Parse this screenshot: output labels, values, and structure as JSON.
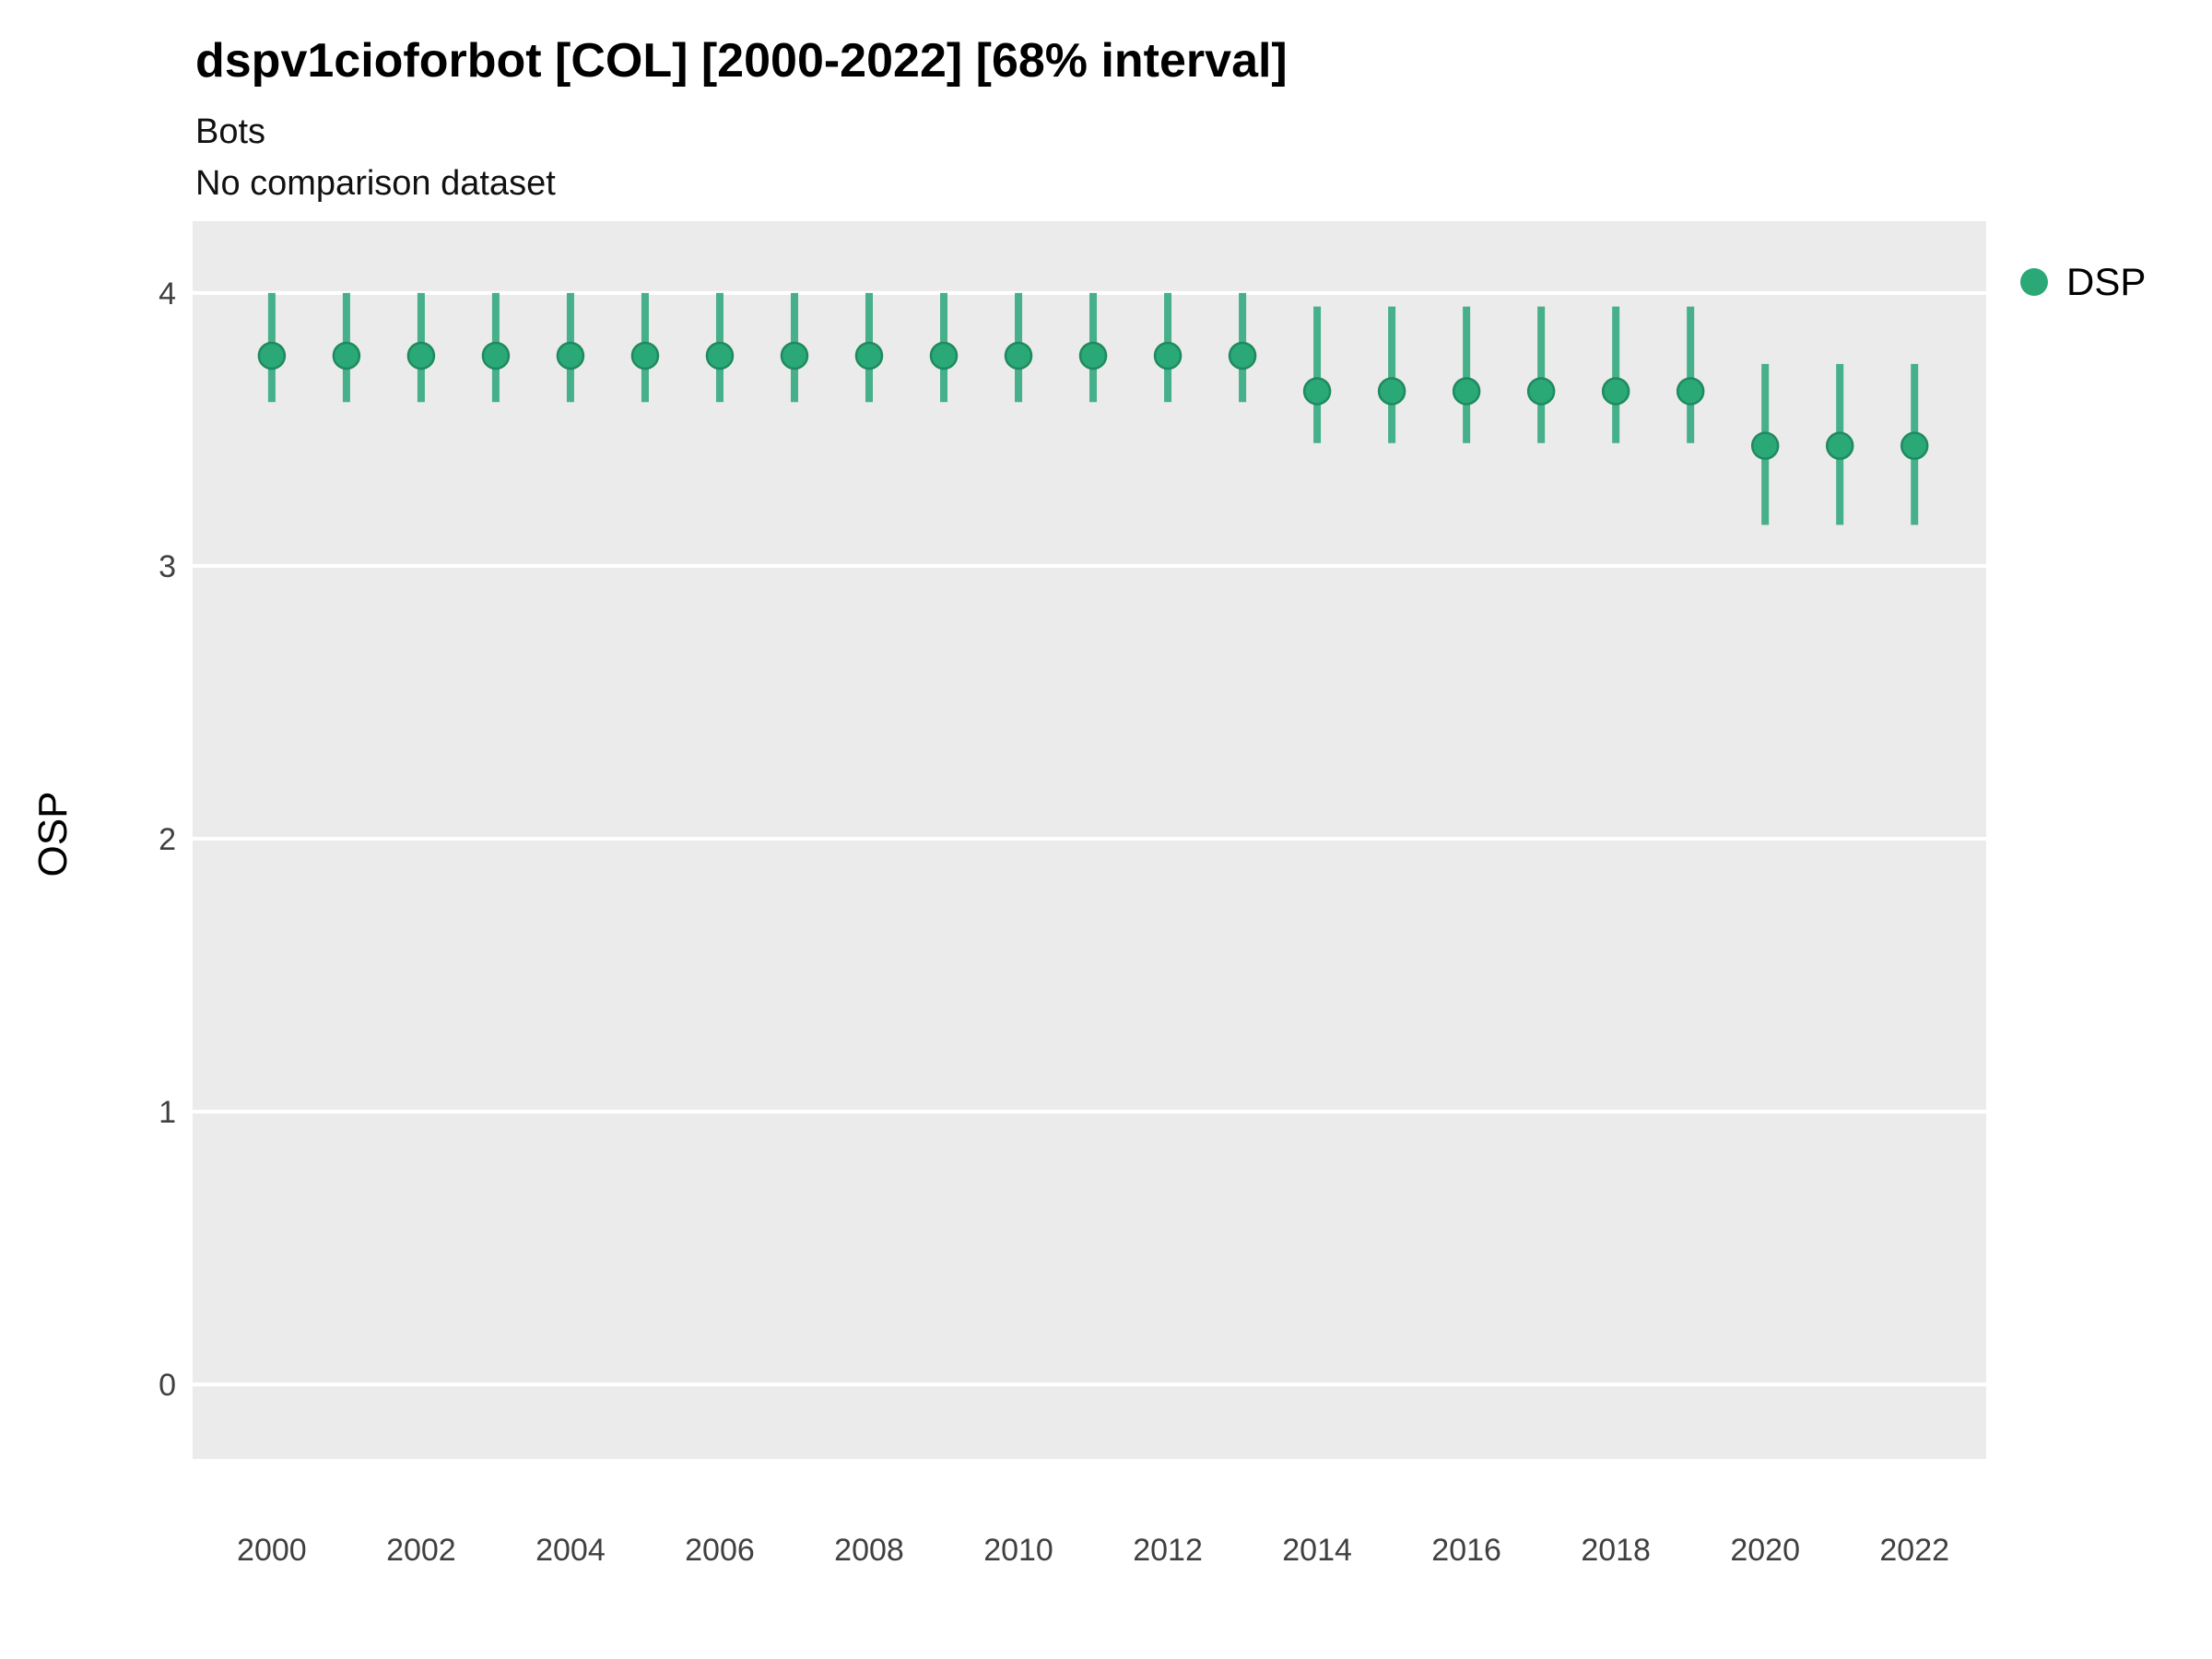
{
  "chart_data": {
    "type": "scatter",
    "title": "dspv1cioforbot [COL] [2000-2022] [68% interval]",
    "subtitle": "Bots",
    "note": "No comparison dataset",
    "xlabel": "",
    "ylabel": "OSP",
    "xlim": [
      1998.94,
      2022.96
    ],
    "ylim": [
      -0.273,
      4.263
    ],
    "xticks": [
      2000,
      2002,
      2004,
      2006,
      2008,
      2010,
      2012,
      2014,
      2016,
      2018,
      2020,
      2022
    ],
    "yticks": [
      0,
      1,
      2,
      3,
      4
    ],
    "grid": "horizontal-major-only",
    "legend": {
      "position": "right",
      "entries": [
        {
          "label": "DSP",
          "color": "#2aa876"
        }
      ]
    },
    "series": [
      {
        "name": "DSP",
        "points": [
          {
            "x": 2000,
            "y": 3.77,
            "lo": 3.6,
            "hi": 4.0
          },
          {
            "x": 2001,
            "y": 3.77,
            "lo": 3.6,
            "hi": 4.0
          },
          {
            "x": 2002,
            "y": 3.77,
            "lo": 3.6,
            "hi": 4.0
          },
          {
            "x": 2003,
            "y": 3.77,
            "lo": 3.6,
            "hi": 4.0
          },
          {
            "x": 2004,
            "y": 3.77,
            "lo": 3.6,
            "hi": 4.0
          },
          {
            "x": 2005,
            "y": 3.77,
            "lo": 3.6,
            "hi": 4.0
          },
          {
            "x": 2006,
            "y": 3.77,
            "lo": 3.6,
            "hi": 4.0
          },
          {
            "x": 2007,
            "y": 3.77,
            "lo": 3.6,
            "hi": 4.0
          },
          {
            "x": 2008,
            "y": 3.77,
            "lo": 3.6,
            "hi": 4.0
          },
          {
            "x": 2009,
            "y": 3.77,
            "lo": 3.6,
            "hi": 4.0
          },
          {
            "x": 2010,
            "y": 3.77,
            "lo": 3.6,
            "hi": 4.0
          },
          {
            "x": 2011,
            "y": 3.77,
            "lo": 3.6,
            "hi": 4.0
          },
          {
            "x": 2012,
            "y": 3.77,
            "lo": 3.6,
            "hi": 4.0
          },
          {
            "x": 2013,
            "y": 3.77,
            "lo": 3.6,
            "hi": 4.0
          },
          {
            "x": 2014,
            "y": 3.64,
            "lo": 3.45,
            "hi": 3.95
          },
          {
            "x": 2015,
            "y": 3.64,
            "lo": 3.45,
            "hi": 3.95
          },
          {
            "x": 2016,
            "y": 3.64,
            "lo": 3.45,
            "hi": 3.95
          },
          {
            "x": 2017,
            "y": 3.64,
            "lo": 3.45,
            "hi": 3.95
          },
          {
            "x": 2018,
            "y": 3.64,
            "lo": 3.45,
            "hi": 3.95
          },
          {
            "x": 2019,
            "y": 3.64,
            "lo": 3.45,
            "hi": 3.95
          },
          {
            "x": 2020,
            "y": 3.44,
            "lo": 3.15,
            "hi": 3.74
          },
          {
            "x": 2021,
            "y": 3.44,
            "lo": 3.15,
            "hi": 3.74
          },
          {
            "x": 2022,
            "y": 3.44,
            "lo": 3.15,
            "hi": 3.74
          }
        ]
      }
    ],
    "colors": {
      "point": "#2aa876",
      "point_stroke": "#1f8a60",
      "interval": "#45b08a",
      "panel_bg": "#ebebeb",
      "gridline": "#ffffff",
      "tick_text": "#404040"
    }
  }
}
